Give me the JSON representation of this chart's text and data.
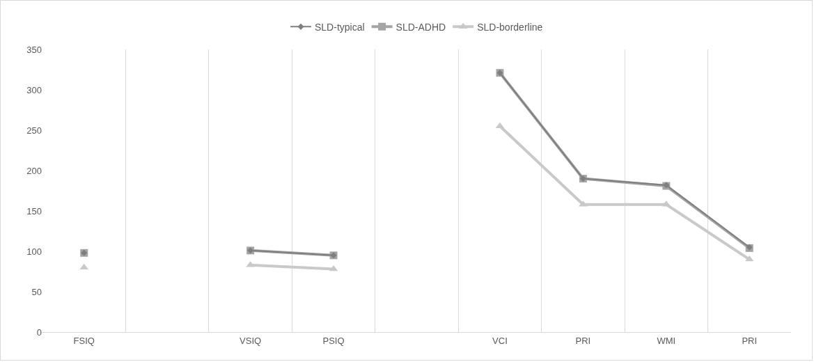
{
  "chart_data": {
    "type": "line",
    "categories": [
      "FSIQ",
      null,
      "VSIQ",
      "PSIQ",
      null,
      "VCI",
      "PRI",
      "WMI",
      "PRI"
    ],
    "series": [
      {
        "name": "SLD-typical",
        "color": "#7f7f7f",
        "marker": "diamond",
        "values": [
          98,
          null,
          101,
          95,
          null,
          321,
          190,
          182,
          105
        ]
      },
      {
        "name": "SLD-ADHD",
        "color": "#a5a5a5",
        "marker": "square",
        "values": [
          98,
          null,
          101,
          95,
          null,
          321,
          190,
          181,
          104
        ]
      },
      {
        "name": "SLD-borderline",
        "color": "#c9c9c9",
        "marker": "triangle",
        "values": [
          80,
          null,
          83,
          78,
          null,
          255,
          158,
          158,
          90
        ]
      }
    ],
    "ylim": [
      0,
      350
    ],
    "yticks": [
      0,
      50,
      100,
      150,
      200,
      250,
      300,
      350
    ],
    "grid": "x",
    "legend": "top"
  }
}
